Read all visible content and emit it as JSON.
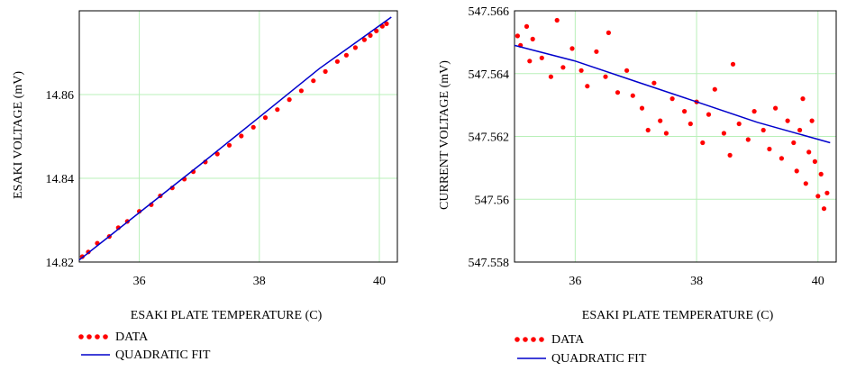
{
  "chart_data": [
    {
      "type": "scatter",
      "xlabel": "ESAKI PLATE TEMPERATURE (C)",
      "ylabel": "ESAKI VOLTAGE (mV)",
      "xlim": [
        35.0,
        40.3
      ],
      "ylim": [
        14.82,
        14.88
      ],
      "xticks": [
        36,
        38,
        40
      ],
      "xtick_labels": [
        "36",
        "38",
        "40"
      ],
      "yticks": [
        14.82,
        14.84,
        14.86
      ],
      "ytick_labels": [
        "14.82",
        "14.84",
        "14.86"
      ],
      "grid": true,
      "legend_position": "bottom-left",
      "data_points": [
        [
          35.05,
          14.8213
        ],
        [
          35.15,
          14.8224
        ],
        [
          35.3,
          14.8245
        ],
        [
          35.5,
          14.8261
        ],
        [
          35.65,
          14.8282
        ],
        [
          35.8,
          14.8297
        ],
        [
          36.0,
          14.8321
        ],
        [
          36.2,
          14.8337
        ],
        [
          36.35,
          14.8358
        ],
        [
          36.55,
          14.8377
        ],
        [
          36.75,
          14.8398
        ],
        [
          36.9,
          14.8416
        ],
        [
          37.1,
          14.8439
        ],
        [
          37.3,
          14.8458
        ],
        [
          37.5,
          14.8479
        ],
        [
          37.7,
          14.8501
        ],
        [
          37.9,
          14.8522
        ],
        [
          38.1,
          14.8545
        ],
        [
          38.3,
          14.8564
        ],
        [
          38.5,
          14.8588
        ],
        [
          38.7,
          14.8609
        ],
        [
          38.9,
          14.8633
        ],
        [
          39.1,
          14.8655
        ],
        [
          39.3,
          14.8679
        ],
        [
          39.45,
          14.8694
        ],
        [
          39.6,
          14.8712
        ],
        [
          39.75,
          14.8731
        ],
        [
          39.85,
          14.8741
        ],
        [
          39.95,
          14.8752
        ],
        [
          40.05,
          14.8763
        ],
        [
          40.12,
          14.8769
        ]
      ],
      "fit_line": [
        [
          35.0,
          14.8205
        ],
        [
          36.0,
          14.8318
        ],
        [
          37.0,
          14.8431
        ],
        [
          38.0,
          14.8546
        ],
        [
          39.0,
          14.8662
        ],
        [
          40.2,
          14.8785
        ]
      ],
      "series": [
        {
          "name": "DATA",
          "kind": "points",
          "color": "#ff0000"
        },
        {
          "name": "QUADRATIC FIT",
          "kind": "line",
          "color": "#0000cc"
        }
      ]
    },
    {
      "type": "scatter",
      "xlabel": "ESAKI PLATE TEMPERATURE (C)",
      "ylabel": "CURRENT VOLTAGE (mV)",
      "xlim": [
        35.0,
        40.3
      ],
      "ylim": [
        547.558,
        547.566
      ],
      "xticks": [
        36,
        38,
        40
      ],
      "xtick_labels": [
        "36",
        "38",
        "40"
      ],
      "yticks": [
        547.558,
        547.56,
        547.562,
        547.564,
        547.566
      ],
      "ytick_labels": [
        "547.558",
        "547.56",
        "547.562",
        "547.564",
        "547.566"
      ],
      "grid": true,
      "legend_position": "bottom-left",
      "data_points": [
        [
          35.05,
          547.5652
        ],
        [
          35.1,
          547.5649
        ],
        [
          35.2,
          547.5655
        ],
        [
          35.25,
          547.5644
        ],
        [
          35.3,
          547.5651
        ],
        [
          35.45,
          547.5645
        ],
        [
          35.6,
          547.5639
        ],
        [
          35.7,
          547.5657
        ],
        [
          35.8,
          547.5642
        ],
        [
          35.95,
          547.5648
        ],
        [
          36.1,
          547.5641
        ],
        [
          36.2,
          547.5636
        ],
        [
          36.35,
          547.5647
        ],
        [
          36.5,
          547.5639
        ],
        [
          36.55,
          547.5653
        ],
        [
          36.7,
          547.5634
        ],
        [
          36.85,
          547.5641
        ],
        [
          36.95,
          547.5633
        ],
        [
          37.1,
          547.5629
        ],
        [
          37.2,
          547.5622
        ],
        [
          37.3,
          547.5637
        ],
        [
          37.4,
          547.5625
        ],
        [
          37.5,
          547.5621
        ],
        [
          37.6,
          547.5632
        ],
        [
          37.8,
          547.5628
        ],
        [
          37.9,
          547.5624
        ],
        [
          38.0,
          547.5631
        ],
        [
          38.1,
          547.5618
        ],
        [
          38.2,
          547.5627
        ],
        [
          38.3,
          547.5635
        ],
        [
          38.45,
          547.5621
        ],
        [
          38.55,
          547.5614
        ],
        [
          38.6,
          547.5643
        ],
        [
          38.7,
          547.5624
        ],
        [
          38.85,
          547.5619
        ],
        [
          38.95,
          547.5628
        ],
        [
          39.1,
          547.5622
        ],
        [
          39.2,
          547.5616
        ],
        [
          39.3,
          547.5629
        ],
        [
          39.4,
          547.5613
        ],
        [
          39.5,
          547.5625
        ],
        [
          39.6,
          547.5618
        ],
        [
          39.65,
          547.5609
        ],
        [
          39.7,
          547.5622
        ],
        [
          39.75,
          547.5632
        ],
        [
          39.8,
          547.5605
        ],
        [
          39.85,
          547.5615
        ],
        [
          39.9,
          547.5625
        ],
        [
          39.95,
          547.5612
        ],
        [
          40.0,
          547.5601
        ],
        [
          40.05,
          547.5608
        ],
        [
          40.1,
          547.5597
        ],
        [
          40.15,
          547.5602
        ]
      ],
      "fit_line": [
        [
          35.0,
          547.5649
        ],
        [
          36.0,
          547.5644
        ],
        [
          37.0,
          547.56375
        ],
        [
          38.0,
          547.5631
        ],
        [
          39.0,
          547.56245
        ],
        [
          40.2,
          547.5618
        ]
      ],
      "series": [
        {
          "name": "DATA",
          "kind": "points",
          "color": "#ff0000"
        },
        {
          "name": "QUADRATIC FIT",
          "kind": "line",
          "color": "#0000cc"
        }
      ]
    }
  ]
}
